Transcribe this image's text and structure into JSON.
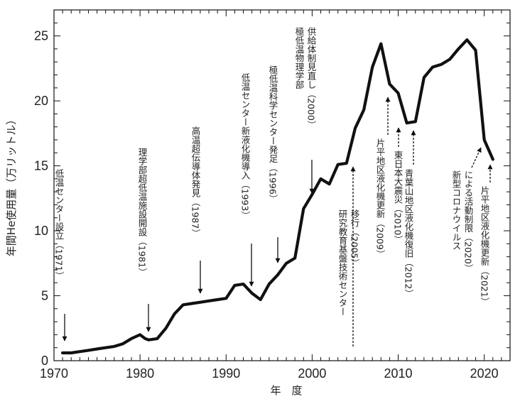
{
  "chart_data": {
    "type": "line",
    "xlabel": "年　度",
    "ylabel": "年間He使用量（万リットル）",
    "xlim": [
      1970,
      2023
    ],
    "ylim": [
      0,
      27
    ],
    "grid": false,
    "x_ticks": [
      "1970",
      "1980",
      "1990",
      "2000",
      "2010",
      "2020"
    ],
    "y_ticks": [
      "0",
      "5",
      "10",
      "15",
      "20",
      "25"
    ],
    "series": [
      {
        "points": [
          [
            1971,
            0.6
          ],
          [
            1972,
            0.6
          ],
          [
            1973,
            0.7
          ],
          [
            1974,
            0.8
          ],
          [
            1975,
            0.9
          ],
          [
            1976,
            1.0
          ],
          [
            1977,
            1.1
          ],
          [
            1978,
            1.3
          ],
          [
            1979,
            1.7
          ],
          [
            1980,
            2.0
          ],
          [
            1980.6,
            1.7
          ],
          [
            1981,
            1.6
          ],
          [
            1982,
            1.7
          ],
          [
            1983,
            2.5
          ],
          [
            1984,
            3.6
          ],
          [
            1985,
            4.3
          ],
          [
            1986,
            4.4
          ],
          [
            1987,
            4.5
          ],
          [
            1988,
            4.6
          ],
          [
            1989,
            4.7
          ],
          [
            1990,
            4.8
          ],
          [
            1991,
            5.8
          ],
          [
            1992,
            5.9
          ],
          [
            1993,
            5.2
          ],
          [
            1994,
            4.7
          ],
          [
            1995,
            5.9
          ],
          [
            1996,
            6.6
          ],
          [
            1997,
            7.5
          ],
          [
            1998,
            7.9
          ],
          [
            1999,
            11.7
          ],
          [
            2000,
            12.8
          ],
          [
            2001,
            14.0
          ],
          [
            2002,
            13.6
          ],
          [
            2003,
            15.1
          ],
          [
            2004,
            15.2
          ],
          [
            2005,
            17.9
          ],
          [
            2006,
            19.3
          ],
          [
            2007,
            22.6
          ],
          [
            2008,
            24.4
          ],
          [
            2009,
            21.3
          ],
          [
            2010,
            20.6
          ],
          [
            2011,
            18.3
          ],
          [
            2012,
            18.4
          ],
          [
            2013,
            21.8
          ],
          [
            2014,
            22.6
          ],
          [
            2015,
            22.8
          ],
          [
            2016,
            23.2
          ],
          [
            2017,
            24.0
          ],
          [
            2018,
            24.7
          ],
          [
            2019,
            23.9
          ],
          [
            2020,
            17.0
          ],
          [
            2021,
            15.5
          ]
        ]
      }
    ],
    "annotations": [
      {
        "id": "ann-1971",
        "x": 1971,
        "y": 0.6,
        "text": "低温センター設立（1971）"
      },
      {
        "id": "ann-1981",
        "x": 1981,
        "y": 1.6,
        "text": "理学部超低温施設開設（1981）"
      },
      {
        "id": "ann-1987",
        "x": 1987,
        "y": 4.5,
        "text": "高温超伝導体発見（1987）"
      },
      {
        "id": "ann-1993",
        "x": 1993,
        "y": 5.2,
        "text": "低温センター新液化機導入（1993）"
      },
      {
        "id": "ann-1996",
        "x": 1996,
        "y": 6.6,
        "text": "極低温科学センター発足（1996）"
      },
      {
        "id": "ann-2000",
        "x": 2000,
        "y": 12.8,
        "text": [
          "極低温物理学部",
          "供給体制見直し（2000）"
        ]
      },
      {
        "id": "ann-2005",
        "x": 2005,
        "y": 17.9,
        "text": [
          "研究教育基盤技術センター",
          "移行（2005）"
        ]
      },
      {
        "id": "ann-2009",
        "x": 2009,
        "y": 21.3,
        "text": "片平地区液化機更新（2009）"
      },
      {
        "id": "ann-2010",
        "x": 2010,
        "y": 20.6,
        "text": "東日本大震災（2010）"
      },
      {
        "id": "ann-2012",
        "x": 2012,
        "y": 18.4,
        "text": "青葉山地区液化機復旧（2012）"
      },
      {
        "id": "ann-2020",
        "x": 2020,
        "y": 17.0,
        "text": [
          "新型コロナウイルス",
          "による活動制限（2020）"
        ]
      },
      {
        "id": "ann-2021",
        "x": 2021,
        "y": 15.5,
        "text": "片平地区液化機更新（2021）"
      }
    ]
  }
}
